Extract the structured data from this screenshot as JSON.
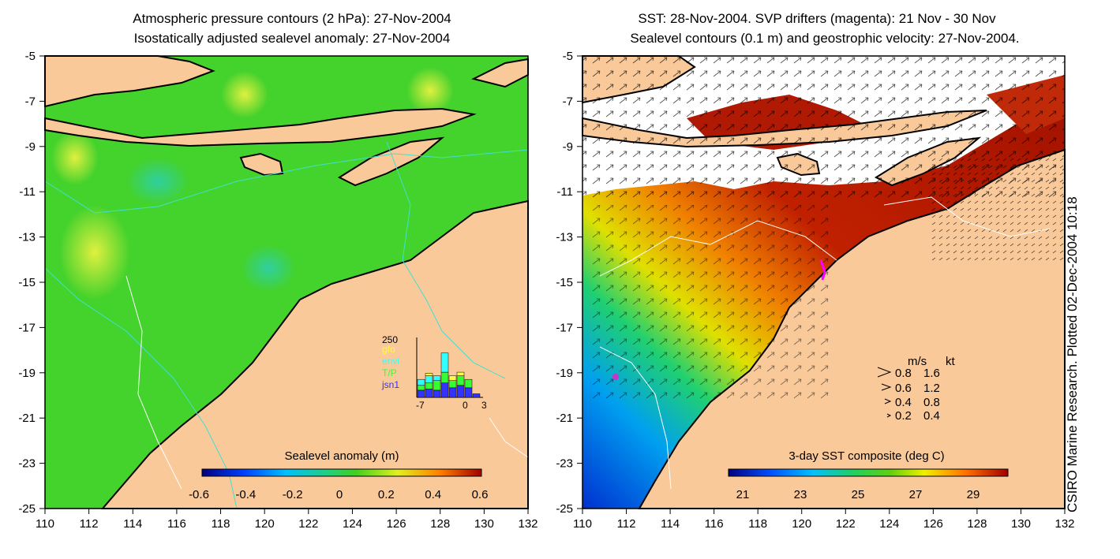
{
  "left_panel": {
    "title_line1": "Atmospheric pressure contours (2 hPa): 27-Nov-2004",
    "title_line2": "Isostatically adjusted sealevel anomaly: 27-Nov-2004",
    "x_ticks": [
      "110",
      "112",
      "114",
      "116",
      "118",
      "120",
      "122",
      "124",
      "126",
      "128",
      "130",
      "132"
    ],
    "y_ticks": [
      "-5",
      "-7",
      "-9",
      "-11",
      "-13",
      "-15",
      "-17",
      "-19",
      "-21",
      "-23",
      "-25"
    ],
    "colorbar_label": "Sealevel anomaly (m)",
    "colorbar_ticks": [
      "-0.6",
      "-0.4",
      "-0.2",
      "0",
      "0.2",
      "0.4",
      "0.6"
    ],
    "inset": {
      "y_max_label": "250",
      "legend": [
        {
          "name": "gfo",
          "color": "#ffff33"
        },
        {
          "name": "envi",
          "color": "#33ffff"
        },
        {
          "name": "T/P",
          "color": "#33ff33"
        },
        {
          "name": "jsn1",
          "color": "#3333ff"
        }
      ],
      "x_labels": [
        "-7",
        "0",
        "3"
      ],
      "bars": [
        {
          "jsn1": 30,
          "tp": 20,
          "envi": 25,
          "gfo": 0
        },
        {
          "jsn1": 35,
          "tp": 25,
          "envi": 30,
          "gfo": 10
        },
        {
          "jsn1": 30,
          "tp": 40,
          "envi": 20,
          "gfo": 0
        },
        {
          "jsn1": 60,
          "tp": 45,
          "envi": 80,
          "gfo": 0
        },
        {
          "jsn1": 40,
          "tp": 30,
          "envi": 0,
          "gfo": 20
        },
        {
          "jsn1": 50,
          "tp": 40,
          "envi": 0,
          "gfo": 15
        },
        {
          "jsn1": 40,
          "tp": 35,
          "envi": 0,
          "gfo": 0
        },
        {
          "jsn1": 15,
          "tp": 0,
          "envi": 0,
          "gfo": 0
        }
      ]
    }
  },
  "right_panel": {
    "title_line1": "SST: 28-Nov-2004. SVP drifters (magenta): 21 Nov - 30 Nov",
    "title_line2": "Sealevel contours (0.1 m) and geostrophic velocity: 27-Nov-2004.",
    "x_ticks": [
      "110",
      "112",
      "114",
      "116",
      "118",
      "120",
      "122",
      "124",
      "126",
      "128",
      "130",
      "132"
    ],
    "y_ticks": [
      "-5",
      "-7",
      "-9",
      "-11",
      "-13",
      "-15",
      "-17",
      "-19",
      "-21",
      "-23",
      "-25"
    ],
    "colorbar_label": "3-day SST composite (deg C)",
    "colorbar_ticks": [
      "21",
      "23",
      "25",
      "27",
      "29"
    ],
    "velocity_legend": {
      "header_ms": "m/s",
      "header_kt": "kt",
      "rows": [
        {
          "ms": "0.8",
          "kt": "1.6"
        },
        {
          "ms": "0.6",
          "kt": "1.2"
        },
        {
          "ms": "0.4",
          "kt": "0.8"
        },
        {
          "ms": "0.2",
          "kt": "0.4"
        }
      ]
    }
  },
  "credit": "CSIRO Marine Research. Plotted 02-Dec-2004 10:18",
  "colors": {
    "land": "#f9c99a",
    "coast": "#000000",
    "ssh_base": "#44d22c",
    "sst_warm": "#b01a05",
    "drifter": "#ff00ff"
  }
}
